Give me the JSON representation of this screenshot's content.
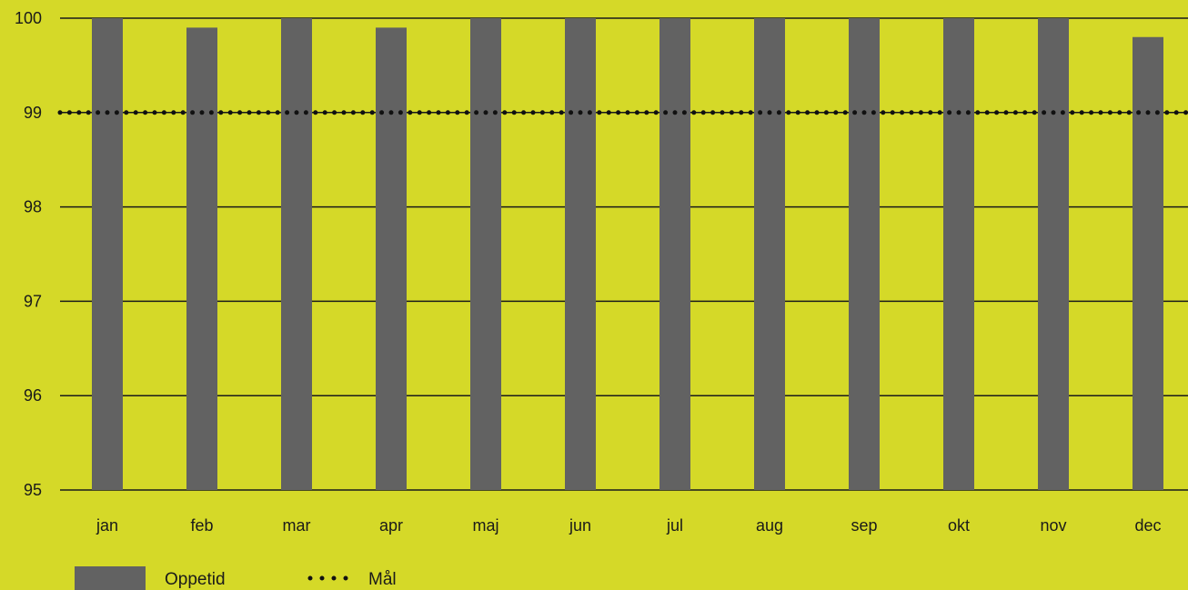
{
  "chart_data": {
    "type": "bar",
    "categories": [
      "jan",
      "feb",
      "mar",
      "apr",
      "maj",
      "jun",
      "jul",
      "aug",
      "sep",
      "okt",
      "nov",
      "dec"
    ],
    "series": [
      {
        "name": "Oppetid",
        "values": [
          100,
          99.9,
          100,
          99.9,
          100,
          100,
          100,
          100,
          100,
          100,
          100,
          99.8
        ],
        "color": "#626262"
      }
    ],
    "target": {
      "name": "Mål",
      "value": 99,
      "style": "dotted",
      "color": "#111111"
    },
    "ylim": [
      95,
      100
    ],
    "yticks": [
      "95",
      "96",
      "97",
      "98",
      "99",
      "100"
    ],
    "grid": true,
    "legend_position": "bottom-left",
    "background": "#d5d928",
    "gridline_color": "#1a1a1a"
  }
}
